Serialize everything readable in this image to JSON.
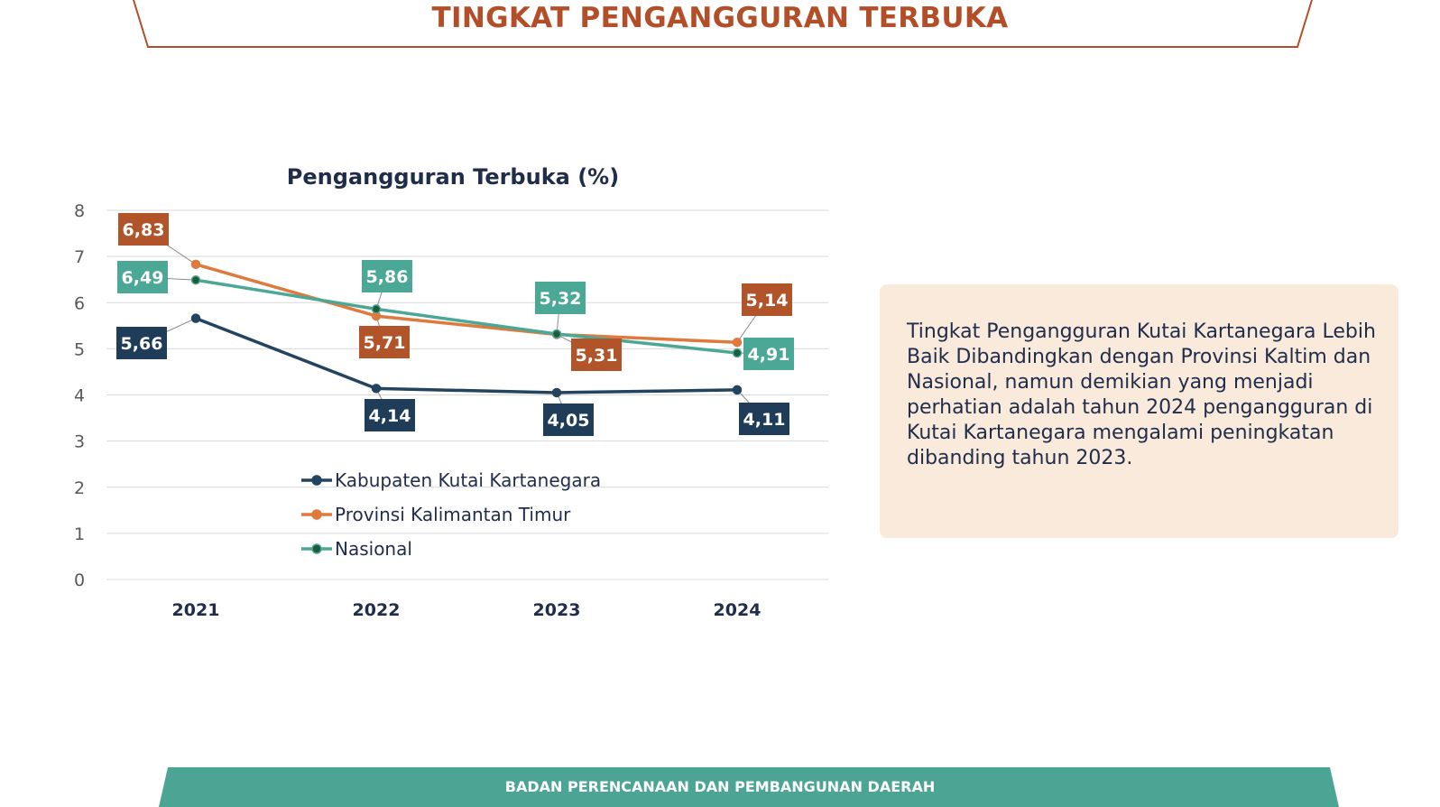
{
  "page": {
    "title": "TINGKAT PENGANGGURAN TERBUKA"
  },
  "colors": {
    "accent": "#b24f28",
    "navy": "#23445f",
    "orange": "#df7a3f",
    "teal": "#4ca896",
    "label_navy": "#1f3c58",
    "label_orange": "#b2542a",
    "label_teal": "#4ca896",
    "note_bg": "#f9eadc",
    "footer_bg": "#4ca594",
    "title_dark": "#1f2d4a"
  },
  "chart_data": {
    "type": "line",
    "title": "Pengangguran Terbuka (%)",
    "categories": [
      "2021",
      "2022",
      "2023",
      "2024"
    ],
    "ylim": [
      0,
      8
    ],
    "yticks": [
      "0",
      "1",
      "2",
      "3",
      "4",
      "5",
      "6",
      "7",
      "8"
    ],
    "grid": true,
    "legend_position": "bottom-center",
    "series": [
      {
        "name": "Kabupaten Kutai Kartanegara",
        "values": [
          5.66,
          4.14,
          4.05,
          4.11
        ],
        "labels": [
          "5,66",
          "4,14",
          "4,05",
          "4,11"
        ]
      },
      {
        "name": "Provinsi Kalimantan Timur",
        "values": [
          6.83,
          5.71,
          5.31,
          5.14
        ],
        "labels": [
          "6,83",
          "5,71",
          "5,31",
          "5,14"
        ]
      },
      {
        "name": "Nasional",
        "values": [
          6.49,
          5.86,
          5.32,
          4.91
        ],
        "labels": [
          "6,49",
          "5,86",
          "5,32",
          "4,91"
        ]
      }
    ]
  },
  "note": {
    "text": "Tingkat Pengangguran Kutai Kartanegara Lebih Baik Dibandingkan dengan Provinsi Kaltim dan Nasional, namun demikian yang menjadi perhatian adalah tahun 2024 pengangguran di Kutai Kartanegara mengalami peningkatan dibanding tahun 2023."
  },
  "footer": {
    "text": "BADAN PERENCANAAN DAN PEMBANGUNAN DAERAH"
  }
}
